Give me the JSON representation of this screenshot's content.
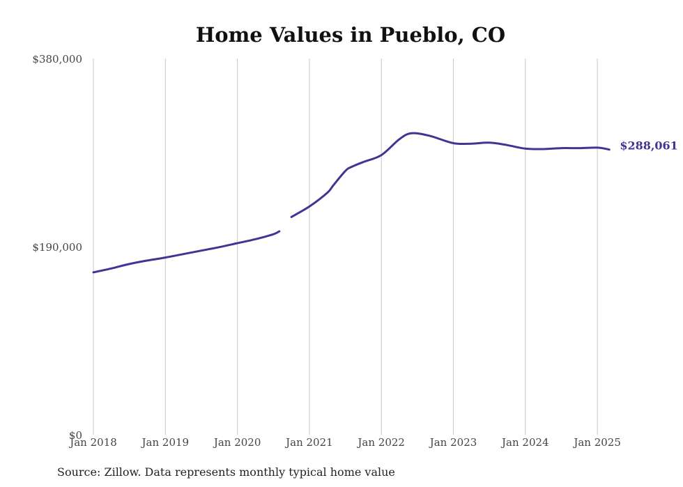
{
  "chart_data": {
    "type": "line",
    "title": "Home Values in Pueblo, CO",
    "xlabel": "",
    "ylabel": "",
    "y_tick_labels": [
      "$380,000",
      "$190,000",
      "$0"
    ],
    "y_tick_values": [
      380000,
      190000,
      0
    ],
    "ylim": [
      0,
      380000
    ],
    "x_tick_labels": [
      "Jan 2018",
      "Jan 2019",
      "Jan 2020",
      "Jan 2021",
      "Jan 2022",
      "Jan 2023",
      "Jan 2024",
      "Jan 2025"
    ],
    "grid": "vertical",
    "line_color": "#3f3594",
    "end_label": "$288,061",
    "source": "Source: Zillow. Data represents monthly typical home value",
    "series": [
      {
        "segments": [
          [
            {
              "x": "2018-01",
              "y": 164000
            },
            {
              "x": "2018-04",
              "y": 168000
            },
            {
              "x": "2018-07",
              "y": 172500
            },
            {
              "x": "2018-10",
              "y": 176000
            },
            {
              "x": "2019-01",
              "y": 179000
            },
            {
              "x": "2019-04",
              "y": 182500
            },
            {
              "x": "2019-07",
              "y": 186000
            },
            {
              "x": "2019-10",
              "y": 189500
            },
            {
              "x": "2020-01",
              "y": 193500
            },
            {
              "x": "2020-04",
              "y": 197500
            },
            {
              "x": "2020-07",
              "y": 202500
            },
            {
              "x": "2020-08",
              "y": 205500
            }
          ],
          [
            {
              "x": "2020-10",
              "y": 220000
            },
            {
              "x": "2021-01",
              "y": 230500
            },
            {
              "x": "2021-04",
              "y": 244500
            },
            {
              "x": "2021-05",
              "y": 252000
            },
            {
              "x": "2021-07",
              "y": 266500
            },
            {
              "x": "2021-08",
              "y": 270500
            },
            {
              "x": "2021-10",
              "y": 275500
            },
            {
              "x": "2022-01",
              "y": 282500
            },
            {
              "x": "2022-04",
              "y": 298500
            },
            {
              "x": "2022-06",
              "y": 304500
            },
            {
              "x": "2022-09",
              "y": 302000
            },
            {
              "x": "2023-01",
              "y": 294500
            },
            {
              "x": "2023-04",
              "y": 294000
            },
            {
              "x": "2023-07",
              "y": 295000
            },
            {
              "x": "2023-10",
              "y": 292500
            },
            {
              "x": "2024-01",
              "y": 289000
            },
            {
              "x": "2024-04",
              "y": 288500
            },
            {
              "x": "2024-07",
              "y": 289500
            },
            {
              "x": "2024-10",
              "y": 289500
            },
            {
              "x": "2025-01",
              "y": 290000
            },
            {
              "x": "2025-03",
              "y": 288061
            }
          ]
        ]
      }
    ]
  }
}
